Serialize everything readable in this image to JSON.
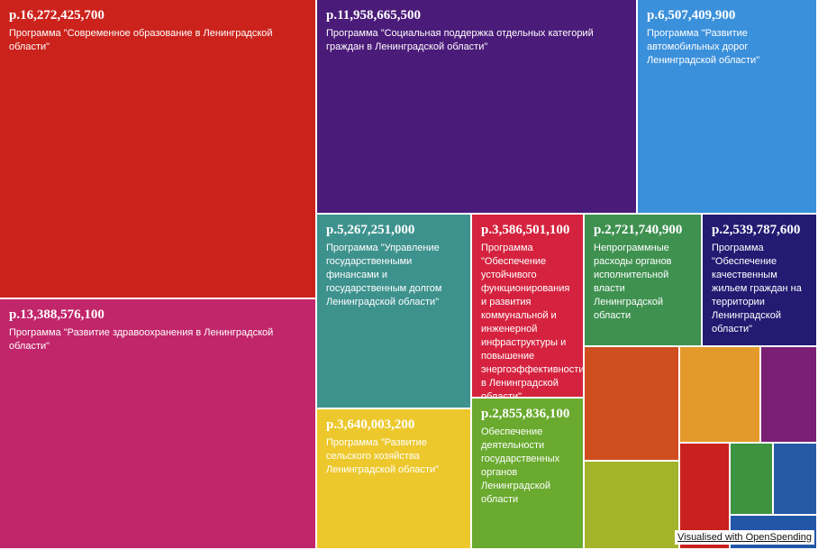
{
  "chart_data": {
    "type": "treemap",
    "currency_prefix": "р.",
    "items": [
      {
        "value": 16272425700,
        "amount": "р.16,272,425,700",
        "label": "Программа \"Современное образование в Ленинградской области\"",
        "color": "#cb231c"
      },
      {
        "value": 13388576100,
        "amount": "р.13,388,576,100",
        "label": "Программа \"Развитие здравоохранения в Ленинградской области\"",
        "color": "#c1266a"
      },
      {
        "value": 11958665500,
        "amount": "р.11,958,665,500",
        "label": "Программа \"Социальная поддержка отдельных категорий граждан в Ленинградской области\"",
        "color": "#4b1b79"
      },
      {
        "value": 6507409900,
        "amount": "р.6,507,409,900",
        "label": "Программа \"Развитие автомобильных дорог Ленинградской области\"",
        "color": "#3b90db"
      },
      {
        "value": 5267251000,
        "amount": "р.5,267,251,000",
        "label": "Программа \"Управление государственными финансами и государственным долгом Ленинградской области\"",
        "color": "#3e928e"
      },
      {
        "value": 3640003200,
        "amount": "р.3,640,003,200",
        "label": "Программа \"Развитие сельского хозяйства Ленинградской области\"",
        "color": "#edc82d"
      },
      {
        "value": 3586501100,
        "amount": "р.3,586,501,100",
        "label": "Программа \"Обеспечение устойчивого функционирования и развития коммунальной и инженерной инфраструктуры и повышение энергоэффективности в Ленинградской области\"",
        "color": "#d5233f"
      },
      {
        "value": 2855836100,
        "amount": "р.2,855,836,100",
        "label": "Обеспечение деятельности государственных органов Ленинградской области",
        "color": "#6aaa2f"
      },
      {
        "value": 2721740900,
        "amount": "р.2,721,740,900",
        "label": "Непрограммные расходы органов исполнительной власти Ленинградской области",
        "color": "#3f9150"
      },
      {
        "value": 2539787600,
        "amount": "р.2,539,787,600",
        "label": "Программа \"Обеспечение качественным жильем граждан на территории Ленинградской области\"",
        "color": "#231a72"
      }
    ],
    "unlabeled_tiles": [
      {
        "color": "#cf4d1e"
      },
      {
        "color": "#e39a2a"
      },
      {
        "color": "#7b1f74"
      },
      {
        "color": "#a3b42a"
      },
      {
        "color": "#c8211f"
      },
      {
        "color": "#3d9340"
      },
      {
        "color": "#275aa5"
      },
      {
        "color": "#2257a7"
      }
    ]
  },
  "footer": {
    "credit": "Visualised with OpenSpending"
  }
}
